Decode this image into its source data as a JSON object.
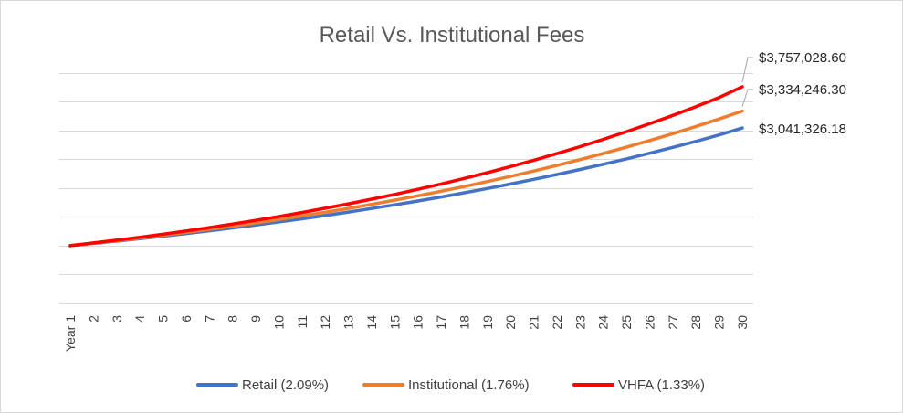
{
  "chart_data": {
    "type": "line",
    "title": "Retail Vs. Institutional Fees",
    "xlabel": "",
    "ylabel": "",
    "categories": [
      "Year 1",
      "2",
      "3",
      "4",
      "5",
      "6",
      "7",
      "8",
      "9",
      "10",
      "11",
      "12",
      "13",
      "14",
      "15",
      "16",
      "17",
      "18",
      "19",
      "20",
      "21",
      "22",
      "23",
      "24",
      "25",
      "26",
      "27",
      "28",
      "29",
      "30"
    ],
    "ylim": [
      0,
      4500000
    ],
    "y_gridlines": [
      0,
      500000,
      1000000,
      1500000,
      2000000,
      2500000,
      3000000,
      3500000,
      4000000
    ],
    "y_tick_labels_visible": false,
    "grid": true,
    "legend_position": "bottom",
    "series": [
      {
        "name": "Retail (2.09%)",
        "color": "#4472c4",
        "values": [
          1000000,
          1039000,
          1079500,
          1121600,
          1165400,
          1210900,
          1258200,
          1307300,
          1358300,
          1411300,
          1466300,
          1523500,
          1582900,
          1644600,
          1708800,
          1775400,
          1844700,
          1916600,
          1991400,
          2069100,
          2149700,
          2233600,
          2320700,
          2411200,
          2505200,
          2602900,
          2704500,
          2810000,
          2919600,
          3041326.18
        ]
      },
      {
        "name": "Institutional (1.76%)",
        "color": "#ed7d31",
        "values": [
          1000000,
          1042500,
          1086600,
          1132600,
          1180700,
          1230900,
          1283200,
          1337600,
          1394200,
          1453300,
          1514900,
          1579100,
          1646100,
          1716000,
          1789000,
          1864800,
          1943700,
          2025700,
          2111700,
          2201100,
          2294000,
          2391500,
          2492800,
          2598400,
          2708700,
          2823500,
          2943100,
          3068000,
          3197600,
          3334246.3
        ]
      },
      {
        "name": "VHFA (1.33%)",
        "color": "#ff0000",
        "values": [
          1000000,
          1046600,
          1095300,
          1146200,
          1199500,
          1255300,
          1313600,
          1374700,
          1438600,
          1505500,
          1575500,
          1648700,
          1725400,
          1805600,
          1889500,
          1977400,
          2069300,
          2165500,
          2266200,
          2371500,
          2481800,
          2597200,
          2717900,
          2844300,
          2976500,
          3114900,
          3259700,
          3411300,
          3569900,
          3757028.6
        ]
      }
    ],
    "annotations": [
      {
        "series": "VHFA (1.33%)",
        "text": "$3,757,028.60"
      },
      {
        "series": "Institutional (1.76%)",
        "text": "$3,334,246.30"
      },
      {
        "series": "Retail (2.09%)",
        "text": "$3,041,326.18"
      }
    ]
  }
}
